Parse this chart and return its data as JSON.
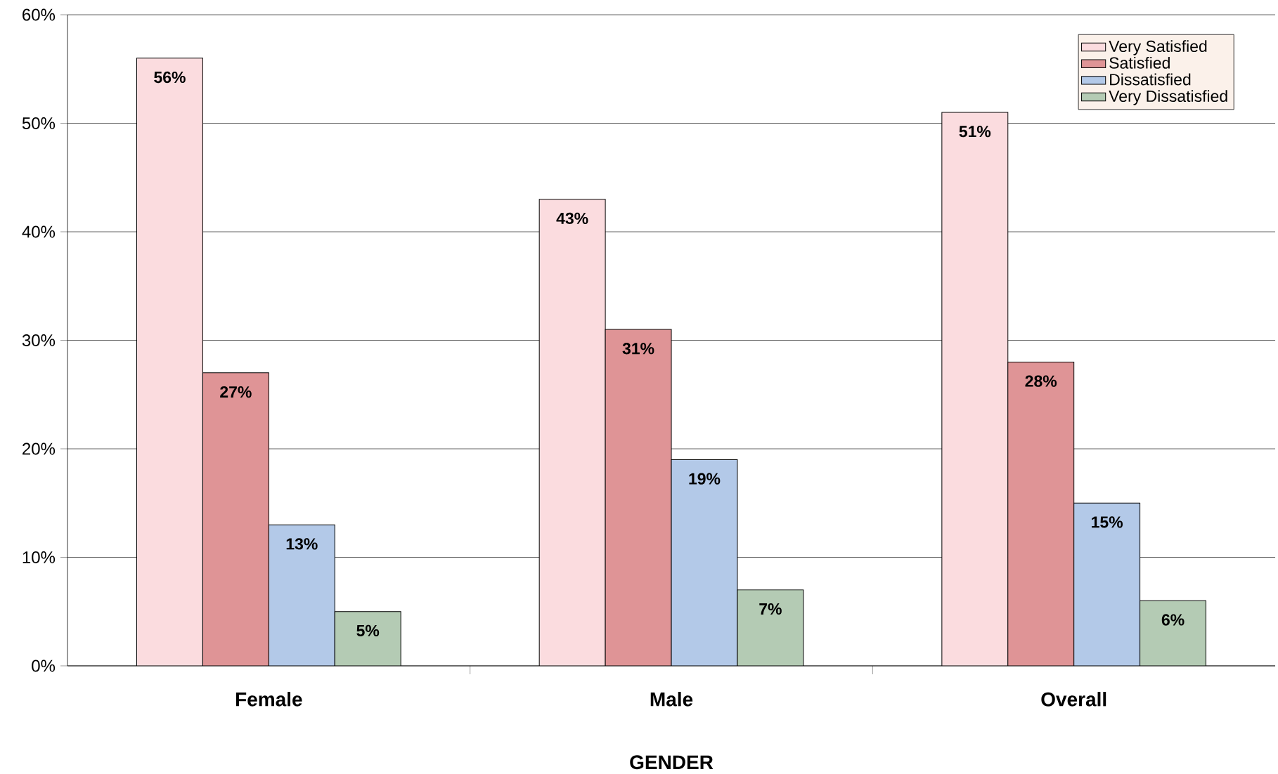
{
  "chart_data": {
    "type": "bar",
    "xlabel": "GENDER",
    "categories": [
      "Female",
      "Male",
      "Overall"
    ],
    "series": [
      {
        "name": "Very Satisfied",
        "color": "#fbdcdf",
        "values": [
          56,
          43,
          51
        ],
        "value_labels": [
          "56%",
          "43%",
          "51%"
        ]
      },
      {
        "name": "Satisfied",
        "color": "#df9496",
        "values": [
          27,
          31,
          28
        ],
        "value_labels": [
          "27%",
          "31%",
          "28%"
        ]
      },
      {
        "name": "Dissatisfied",
        "color": "#b3c9e8",
        "values": [
          13,
          19,
          15
        ],
        "value_labels": [
          "13%",
          "19%",
          "15%"
        ]
      },
      {
        "name": "Very Dissatisfied",
        "color": "#b4cbb4",
        "values": [
          5,
          7,
          6
        ],
        "value_labels": [
          "5%",
          "7%",
          "6%"
        ]
      }
    ],
    "ylim": [
      0,
      60
    ],
    "yticks": [
      {
        "value": 0,
        "label": "0%"
      },
      {
        "value": 10,
        "label": "10%"
      },
      {
        "value": 20,
        "label": "20%"
      },
      {
        "value": 30,
        "label": "30%"
      },
      {
        "value": 40,
        "label": "40%"
      },
      {
        "value": 50,
        "label": "50%"
      },
      {
        "value": 60,
        "label": "60%"
      }
    ],
    "grid": "y",
    "legend": "top right"
  }
}
